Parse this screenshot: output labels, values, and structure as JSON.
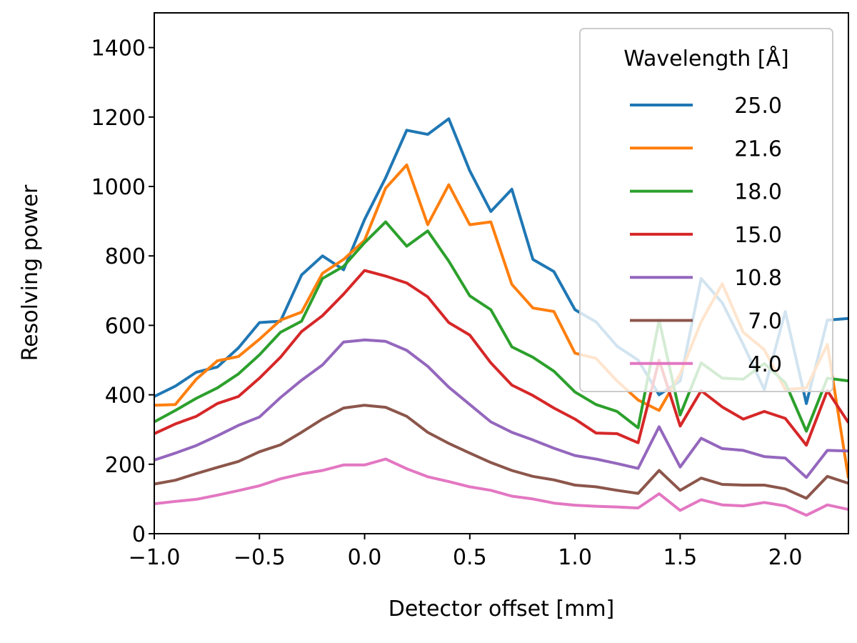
{
  "chart_data": {
    "type": "line",
    "xlabel": "Detector offset [mm]",
    "ylabel": "Resolving power",
    "xlim": [
      -1.0,
      2.3
    ],
    "ylim": [
      0,
      1500
    ],
    "xticks": [
      -1.0,
      -0.5,
      0.0,
      0.5,
      1.0,
      1.5,
      2.0
    ],
    "xtick_labels": [
      "−1.0",
      "−0.5",
      "0.0",
      "0.5",
      "1.0",
      "1.5",
      "2.0"
    ],
    "yticks": [
      0,
      200,
      400,
      600,
      800,
      1000,
      1200,
      1400
    ],
    "ytick_labels": [
      "0",
      "200",
      "400",
      "600",
      "800",
      "1000",
      "1200",
      "1400"
    ],
    "grid": false,
    "legend": {
      "title": "Wavelength [Å]",
      "placement": "top-right"
    },
    "x": [
      -1.0,
      -0.9,
      -0.8,
      -0.7,
      -0.6,
      -0.5,
      -0.4,
      -0.3,
      -0.2,
      -0.1,
      0.0,
      0.1,
      0.2,
      0.3,
      0.4,
      0.5,
      0.6,
      0.7,
      0.8,
      0.9,
      1.0,
      1.1,
      1.2,
      1.3,
      1.4,
      1.5,
      1.6,
      1.7,
      1.8,
      1.9,
      2.0,
      2.1,
      2.2,
      2.3
    ],
    "series": [
      {
        "name": "25.0",
        "color": "#1f77b4",
        "values": [
          395,
          425,
          465,
          480,
          535,
          608,
          612,
          745,
          800,
          760,
          905,
          1025,
          1162,
          1150,
          1195,
          1045,
          928,
          992,
          790,
          755,
          645,
          610,
          540,
          500,
          400,
          440,
          735,
          665,
          545,
          415,
          640,
          375,
          615,
          620
        ]
      },
      {
        "name": "21.6",
        "color": "#ff7f0e",
        "values": [
          370,
          372,
          445,
          498,
          510,
          560,
          615,
          638,
          750,
          790,
          845,
          995,
          1062,
          890,
          1005,
          890,
          898,
          718,
          650,
          640,
          520,
          505,
          440,
          385,
          355,
          460,
          610,
          720,
          580,
          530,
          415,
          420,
          545,
          160
        ]
      },
      {
        "name": "18.0",
        "color": "#2ca02c",
        "values": [
          322,
          355,
          390,
          420,
          460,
          515,
          580,
          612,
          735,
          770,
          838,
          898,
          828,
          872,
          785,
          685,
          645,
          538,
          508,
          468,
          408,
          372,
          352,
          305,
          615,
          342,
          492,
          448,
          445,
          490,
          435,
          295,
          448,
          440
        ]
      },
      {
        "name": "15.0",
        "color": "#d62728",
        "values": [
          288,
          316,
          338,
          375,
          395,
          448,
          508,
          582,
          628,
          690,
          758,
          742,
          722,
          682,
          608,
          572,
          492,
          428,
          398,
          362,
          330,
          290,
          288,
          262,
          500,
          310,
          412,
          365,
          330,
          352,
          332,
          255,
          412,
          320
        ]
      },
      {
        "name": "10.8",
        "color": "#9467bd",
        "values": [
          212,
          232,
          254,
          282,
          312,
          336,
          392,
          442,
          486,
          552,
          558,
          554,
          528,
          482,
          422,
          372,
          322,
          292,
          270,
          246,
          225,
          215,
          202,
          188,
          308,
          192,
          275,
          245,
          240,
          222,
          218,
          162,
          240,
          238
        ]
      },
      {
        "name": "7.0",
        "color": "#8c564b",
        "values": [
          143,
          154,
          173,
          191,
          208,
          236,
          256,
          292,
          330,
          362,
          370,
          364,
          338,
          292,
          260,
          232,
          205,
          182,
          165,
          155,
          140,
          135,
          125,
          116,
          182,
          125,
          160,
          142,
          140,
          140,
          129,
          102,
          165,
          145
        ]
      },
      {
        "name": "4.0",
        "color": "#e377c2",
        "values": [
          86,
          93,
          99,
          111,
          124,
          138,
          158,
          172,
          182,
          198,
          198,
          215,
          187,
          164,
          150,
          135,
          125,
          108,
          100,
          88,
          82,
          79,
          77,
          74,
          115,
          67,
          98,
          83,
          80,
          90,
          80,
          53,
          83,
          70
        ]
      }
    ]
  }
}
